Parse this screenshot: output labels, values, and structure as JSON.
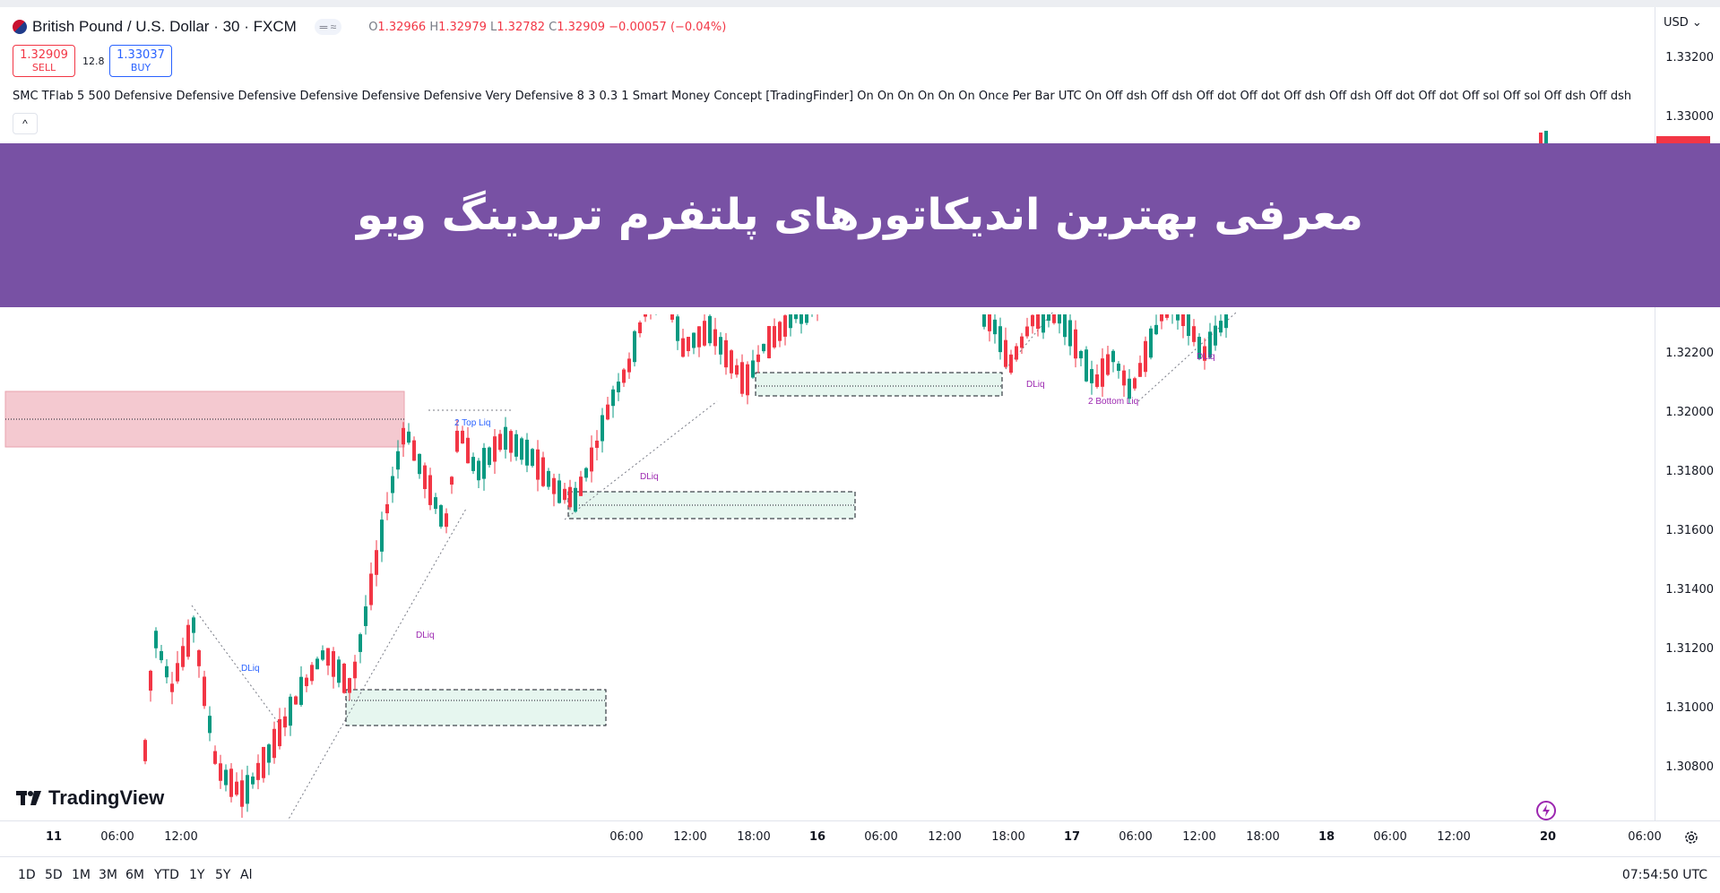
{
  "header": {
    "symbol_title": "British Pound / U.S. Dollar · 30 · FXCM",
    "pill": "═ ≈",
    "ohlc": {
      "o_label": "O",
      "o": "1.32966",
      "h_label": "H",
      "h": "1.32979",
      "l_label": "L",
      "l": "1.32782",
      "c_label": "C",
      "c": "1.32909",
      "change": "−0.00057 (−0.04%)"
    }
  },
  "trade": {
    "sell_price": "1.32909",
    "sell_label": "SELL",
    "spread": "12.8",
    "buy_price": "1.33037",
    "buy_label": "BUY"
  },
  "indicator": {
    "text": "SMC TFlab 5 500 Defensive Defensive Defensive Defensive Defensive Defensive Very Defensive 8 3 0.3 1 Smart Money Concept [TradingFinder] On On On On On On Once Per Bar UTC On Off dsh Off dsh Off dot Off dot Off dsh Off dsh Off dot Off dot Off sol Off sol Off dsh Off dsh",
    "collapse": "^"
  },
  "banner": {
    "title": "معرفی بهترین اندیکاتورهای پلتفرم تریدینگ ویو"
  },
  "price_axis": {
    "currency": "USD ⌄",
    "ticks": [
      "1.33200",
      "1.33000",
      "1.32200",
      "1.32000",
      "1.31800",
      "1.31600",
      "1.31400",
      "1.31200",
      "1.31000",
      "1.30800"
    ]
  },
  "annotations": {
    "dliq": "DLiq",
    "top_liq": "2 Top Liq",
    "bottom_liq": "2 Bottom Liq"
  },
  "time_axis": {
    "labels": [
      "11",
      "06:00",
      "12:00",
      "06:00",
      "12:00",
      "18:00",
      "16",
      "06:00",
      "12:00",
      "18:00",
      "17",
      "06:00",
      "12:00",
      "18:00",
      "18",
      "06:00",
      "12:00",
      "20",
      "06:00"
    ]
  },
  "bottom_bar": {
    "ranges": [
      "1D",
      "5D",
      "1M",
      "3M",
      "6M",
      "YTD",
      "1Y",
      "5Y",
      "All"
    ],
    "clock": "07:54:50 UTC"
  },
  "logo": {
    "text": "TradingView"
  },
  "colors": {
    "up": "#089981",
    "down": "#f23645",
    "banner": "#7851a4",
    "liq": "#9c27b0",
    "zone_red": "#f4c9d0",
    "zone_green": "#e6f6ef"
  }
}
